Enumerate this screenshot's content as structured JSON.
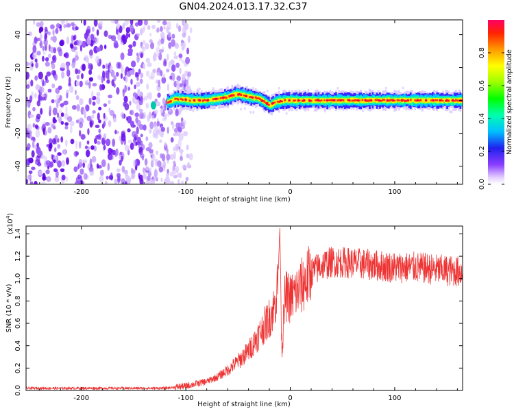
{
  "title": "GN04.2024.013.17.32.C37",
  "chart_data": [
    {
      "type": "heatmap",
      "xlabel": "Height of straight line (km)",
      "ylabel": "Frequency (Hz)",
      "xlim": [
        -253,
        165
      ],
      "ylim": [
        -51,
        49
      ],
      "x_ticks": [
        -200,
        -100,
        0,
        100
      ],
      "x_tick_labels": [
        "-200",
        "-100",
        "0",
        "100"
      ],
      "y_ticks": [
        -40,
        -20,
        0,
        20,
        40
      ],
      "y_tick_labels": [
        "-40",
        "-20",
        "0",
        "20",
        "40"
      ],
      "colorbar": {
        "label": "Normalized spectral amplitude",
        "range": [
          0,
          1
        ],
        "ticks": [
          0.0,
          0.2,
          0.4,
          0.6,
          0.8
        ],
        "tick_labels": [
          "0.0",
          "0.2",
          "0.4",
          "0.6",
          "0.8"
        ]
      },
      "noise_region": {
        "x_range": [
          -253,
          -105
        ],
        "description_values": "scattered low-amplitude noise across all frequencies"
      },
      "ridge": {
        "x": [
          -125,
          -110,
          -95,
          -80,
          -70,
          -60,
          -52,
          -45,
          -38,
          -30,
          -25,
          -20,
          -15,
          -5,
          10,
          40,
          70,
          100,
          130,
          165
        ],
        "frequency": [
          -3,
          1,
          0,
          0,
          1,
          2,
          4,
          3,
          2,
          1,
          -1,
          -3,
          -1,
          0,
          0,
          0,
          0,
          0,
          0,
          0
        ],
        "peak_amplitude": 1.0
      },
      "grid": false
    },
    {
      "type": "line",
      "xlabel": "Height of straight line (km)",
      "ylabel": "SNR (10 * v/v)",
      "y_multiplier": "(x10",
      "y_multiplier_exp": "4",
      "y_multiplier_close": ")",
      "xlim": [
        -253,
        165
      ],
      "ylim": [
        0,
        1.47
      ],
      "x_ticks": [
        -200,
        -100,
        0,
        100
      ],
      "x_tick_labels": [
        "-200",
        "-100",
        "0",
        "100"
      ],
      "y_ticks": [
        0.0,
        0.2,
        0.4,
        0.6,
        0.8,
        1.0,
        1.2,
        1.4
      ],
      "y_tick_labels": [
        "0.0",
        "0.2",
        "0.4",
        "0.6",
        "0.8",
        "1.0",
        "1.2",
        "1.4"
      ],
      "series": [
        {
          "color": "#ee3333",
          "x": [
            -253,
            -200,
            -150,
            -120,
            -100,
            -90,
            -80,
            -70,
            -60,
            -50,
            -40,
            -30,
            -20,
            -15,
            -12,
            -10,
            -8,
            -5,
            0,
            10,
            20,
            30,
            40,
            60,
            80,
            100,
            120,
            140,
            165
          ],
          "y": [
            0.02,
            0.02,
            0.02,
            0.02,
            0.04,
            0.06,
            0.08,
            0.12,
            0.18,
            0.26,
            0.35,
            0.5,
            0.65,
            0.75,
            0.95,
            1.45,
            0.35,
            0.85,
            0.82,
            0.92,
            1.05,
            1.12,
            1.15,
            1.14,
            1.12,
            1.1,
            1.1,
            1.08,
            1.06
          ]
        }
      ],
      "grid": false
    }
  ]
}
